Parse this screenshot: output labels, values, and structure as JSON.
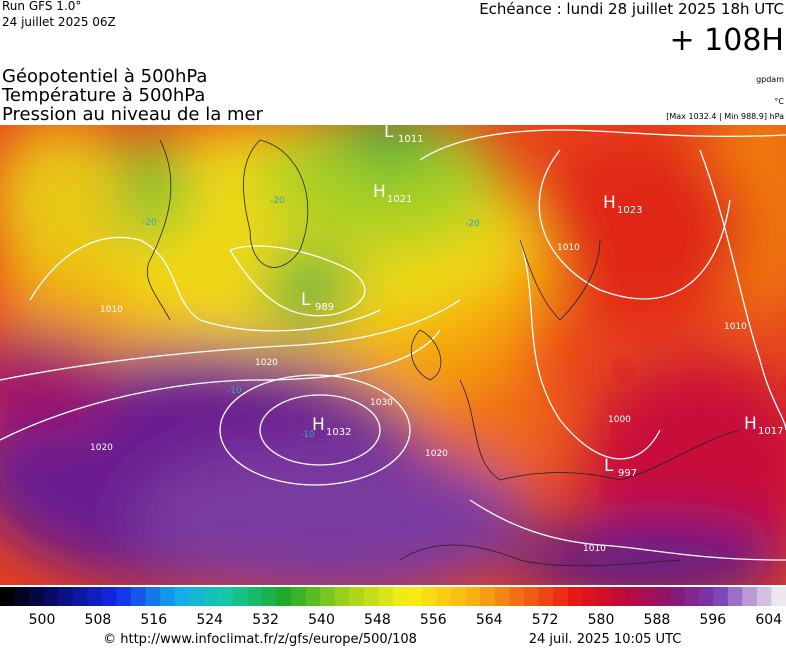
{
  "header": {
    "run": "Run GFS 1.0°",
    "date": "24 juillet 2025 06Z",
    "echeance": "Echéance : lundi 28 juillet 2025 18h UTC",
    "lead": "+ 108H"
  },
  "titles": [
    "Géopotentiel à 500hPa",
    "Température à 500hPa",
    "Pression au niveau de la mer"
  ],
  "units": {
    "geopotential": "gpdam",
    "temperature": "°C",
    "pressure": "[Max 1032.4 | Min 988.9] hPa"
  },
  "centers": [
    {
      "symbol": "H",
      "value": "1032"
    },
    {
      "symbol": "L",
      "value": "989"
    },
    {
      "symbol": "H",
      "value": "1023"
    },
    {
      "symbol": "H",
      "value": "1021"
    },
    {
      "symbol": "L",
      "value": "1011"
    },
    {
      "symbol": "H",
      "value": "1017"
    },
    {
      "symbol": "L",
      "value": "997"
    }
  ],
  "isobar_labels": [
    "1010",
    "1020",
    "1020",
    "1020",
    "1030",
    "1010",
    "1010",
    "1010",
    "1000"
  ],
  "isotherm_labels": [
    "-20",
    "-20",
    "-20",
    "-10",
    "-10"
  ],
  "colorbar": {
    "labels": [
      "500",
      "508",
      "516",
      "524",
      "532",
      "540",
      "548",
      "556",
      "564",
      "572",
      "580",
      "588",
      "596",
      "604"
    ]
  },
  "footer": {
    "url": "© http://www.infoclimat.fr/z/gfs/europe/500/108",
    "generated": "24 juil. 2025 10:05 UTC"
  }
}
